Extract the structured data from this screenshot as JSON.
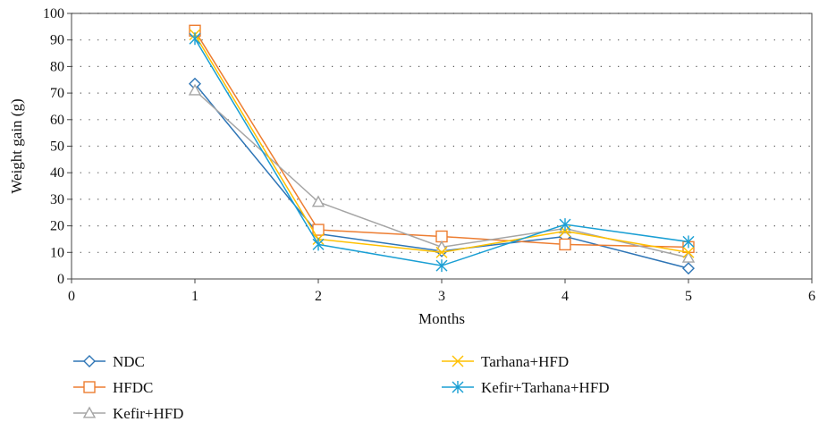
{
  "chart_data": {
    "type": "line",
    "xlabel": "Months",
    "ylabel": "Weight gain (g)",
    "xlim": [
      0,
      6
    ],
    "ylim": [
      0,
      100
    ],
    "x_ticks": [
      0,
      1,
      2,
      3,
      4,
      5,
      6
    ],
    "y_ticks": [
      0,
      10,
      20,
      30,
      40,
      50,
      60,
      70,
      80,
      90,
      100
    ],
    "grid": "dotted horizontal",
    "legend_position": "bottom",
    "x": [
      1,
      2,
      3,
      4,
      5
    ],
    "series": [
      {
        "name": "NDC",
        "values": [
          73.5,
          17,
          10.5,
          16,
          4
        ],
        "color": "#2e75b6",
        "marker": "diamond"
      },
      {
        "name": "HFDC",
        "values": [
          93.5,
          18.5,
          16,
          13,
          12
        ],
        "color": "#ed7d31",
        "marker": "square"
      },
      {
        "name": "Kefir+HFD",
        "values": [
          71,
          29,
          12,
          19,
          8
        ],
        "color": "#a5a5a5",
        "marker": "triangle"
      },
      {
        "name": "Tarhana+HFD",
        "values": [
          92,
          15,
          10,
          18,
          10
        ],
        "color": "#ffc000",
        "marker": "x"
      },
      {
        "name": "Kefir+Tarhana+HFD",
        "values": [
          90.5,
          13,
          5,
          20.5,
          14
        ],
        "color": "#1a9fd4",
        "marker": "star"
      }
    ]
  }
}
